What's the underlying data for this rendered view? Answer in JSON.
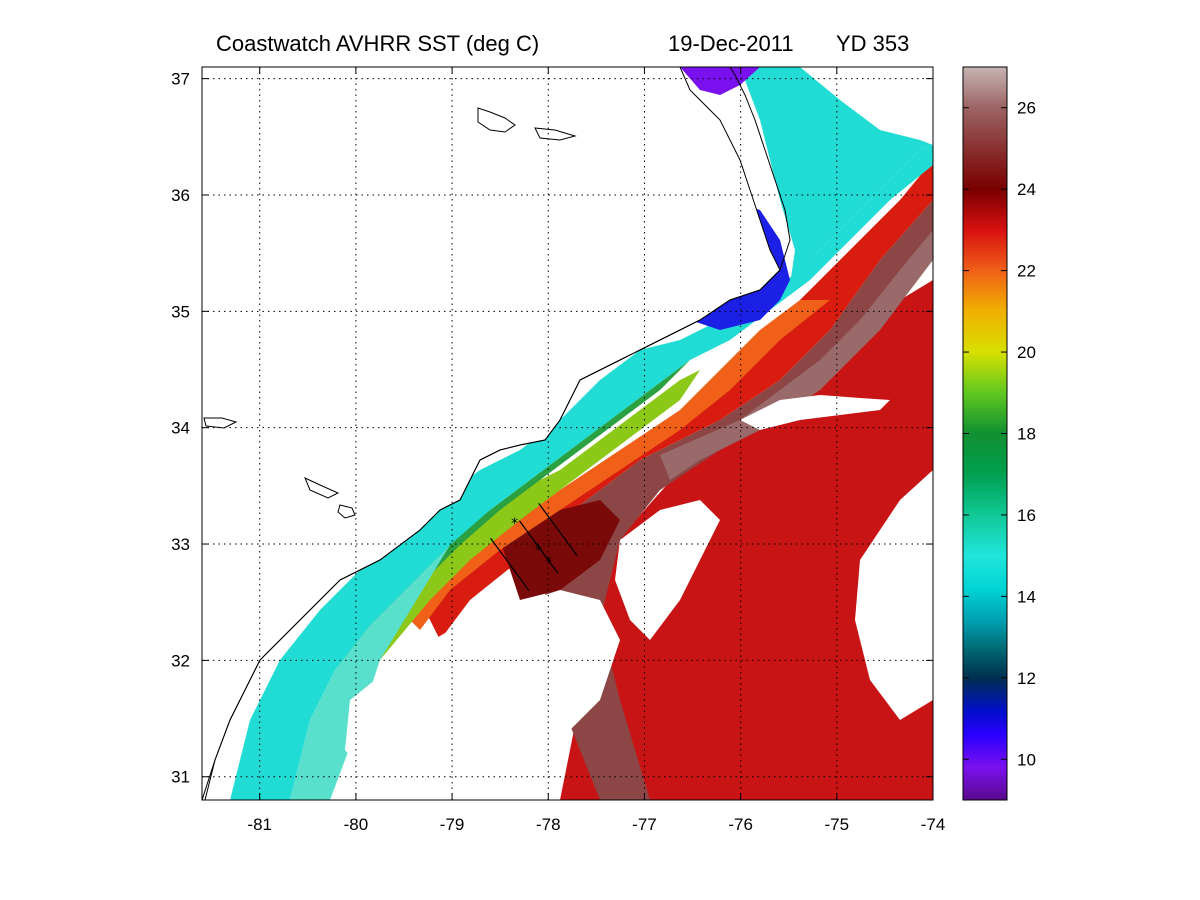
{
  "title": {
    "product": "Coastwatch   AVHRR   SST  (deg C)",
    "date": "19-Dec-2011",
    "yearday": "YD 353"
  },
  "map": {
    "lon_range": [
      -81.6,
      -74.0
    ],
    "lat_range": [
      30.8,
      37.1
    ],
    "lon_ticks": [
      -81,
      -80,
      -79,
      -78,
      -77,
      -76,
      -75,
      -74
    ],
    "lat_ticks": [
      31,
      32,
      33,
      34,
      35,
      36,
      37
    ],
    "lon_tick_labels": [
      "-81",
      "-80",
      "-79",
      "-78",
      "-77",
      "-76",
      "-75",
      "-74"
    ],
    "lat_tick_labels": [
      "31",
      "32",
      "33",
      "34",
      "35",
      "36",
      "37"
    ],
    "grid": true,
    "land_color": "#ffffff",
    "transects": [
      {
        "start": [
          -78.6,
          33.05
        ],
        "end": [
          -78.2,
          32.6
        ]
      },
      {
        "start": [
          -78.3,
          33.2
        ],
        "end": [
          -77.9,
          32.75
        ]
      },
      {
        "start": [
          -78.1,
          33.35
        ],
        "end": [
          -77.7,
          32.9
        ]
      }
    ],
    "stations": [
      {
        "lon": -78.35,
        "lat": 33.18
      },
      {
        "lon": -78.1,
        "lat": 32.95
      },
      {
        "lon": -78.0,
        "lat": 32.85
      }
    ]
  },
  "colorbar": {
    "range": [
      9,
      27
    ],
    "ticks": [
      10,
      12,
      14,
      16,
      18,
      20,
      22,
      24,
      26
    ],
    "tick_labels": [
      "10",
      "12",
      "14",
      "16",
      "18",
      "20",
      "22",
      "24",
      "26"
    ],
    "stops": [
      {
        "v": 9.0,
        "c": "#5a0a8c"
      },
      {
        "v": 9.8,
        "c": "#7a10ee"
      },
      {
        "v": 10.6,
        "c": "#2a00ff"
      },
      {
        "v": 11.2,
        "c": "#0010c8"
      },
      {
        "v": 12.0,
        "c": "#003050"
      },
      {
        "v": 12.6,
        "c": "#00606a"
      },
      {
        "v": 13.4,
        "c": "#00a0b0"
      },
      {
        "v": 14.2,
        "c": "#00d4d4"
      },
      {
        "v": 15.0,
        "c": "#20e6dc"
      },
      {
        "v": 16.0,
        "c": "#10c896"
      },
      {
        "v": 17.0,
        "c": "#00a050"
      },
      {
        "v": 18.0,
        "c": "#109030"
      },
      {
        "v": 19.0,
        "c": "#60c820"
      },
      {
        "v": 20.0,
        "c": "#d8e000"
      },
      {
        "v": 21.0,
        "c": "#f0b000"
      },
      {
        "v": 22.0,
        "c": "#f06018"
      },
      {
        "v": 23.0,
        "c": "#d81010"
      },
      {
        "v": 24.0,
        "c": "#7a0000"
      },
      {
        "v": 25.0,
        "c": "#8a3030"
      },
      {
        "v": 26.0,
        "c": "#9c6464"
      },
      {
        "v": 27.0,
        "c": "#c8b4b4"
      }
    ]
  }
}
